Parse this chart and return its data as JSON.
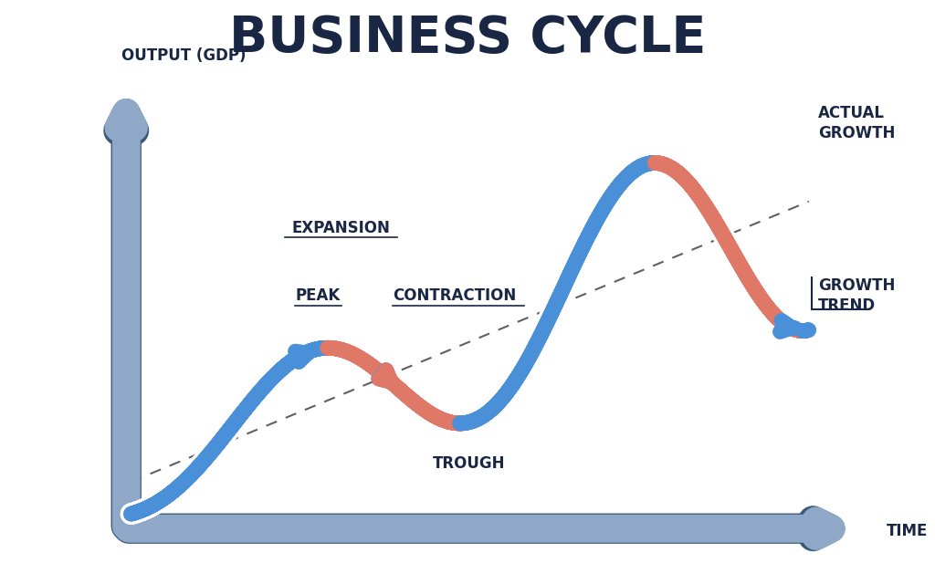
{
  "title": "BUSINESS CYCLE",
  "title_color": "#1a2744",
  "title_fontsize": 40,
  "background_color": "#ffffff",
  "axis_color": "#8fa8c8",
  "axis_edge_color": "#3a5a7a",
  "ylabel": "OUTPUT (GDP)",
  "xlabel": "TIME",
  "label_color": "#1a2744",
  "label_fontsize": 12,
  "wave_color_blue": "#4a90d9",
  "wave_color_red": "#e07868",
  "trend_color": "#444444",
  "annotation_color": "#1a2744",
  "annotation_fontsize": 12,
  "lw_wave": 12,
  "lw_axis": 22
}
